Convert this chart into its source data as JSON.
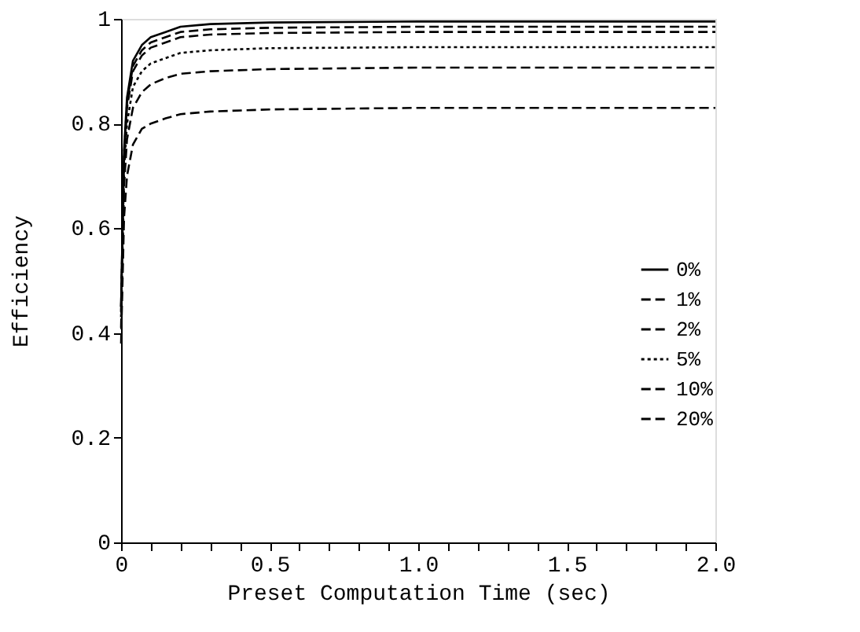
{
  "chart_data": {
    "type": "line",
    "xlabel": "Preset Computation Time (sec)",
    "ylabel": "Efficiency",
    "x": [
      0,
      0.01,
      0.02,
      0.04,
      0.07,
      0.1,
      0.15,
      0.2,
      0.3,
      0.5,
      1,
      1.5,
      2
    ],
    "series": [
      {
        "name": "0%",
        "color": "#000000",
        "line_style": "solid",
        "values": [
          0.45,
          0.75,
          0.85,
          0.92,
          0.95,
          0.965,
          0.975,
          0.985,
          0.99,
          0.993,
          0.995,
          0.995,
          0.995
        ]
      },
      {
        "name": "1%",
        "color": "#000000",
        "line_style": "dashed",
        "values": [
          0.45,
          0.74,
          0.84,
          0.91,
          0.94,
          0.955,
          0.965,
          0.975,
          0.98,
          0.983,
          0.985,
          0.985,
          0.985
        ]
      },
      {
        "name": "2%",
        "color": "#000000",
        "line_style": "dashed",
        "values": [
          0.44,
          0.73,
          0.83,
          0.9,
          0.93,
          0.945,
          0.955,
          0.965,
          0.97,
          0.973,
          0.975,
          0.975,
          0.975
        ]
      },
      {
        "name": "5%",
        "color": "#000000",
        "line_style": "dotted",
        "values": [
          0.43,
          0.71,
          0.8,
          0.87,
          0.9,
          0.915,
          0.925,
          0.935,
          0.94,
          0.944,
          0.946,
          0.946,
          0.946
        ]
      },
      {
        "name": "10%",
        "color": "#000000",
        "line_style": "dashed",
        "values": [
          0.41,
          0.68,
          0.77,
          0.83,
          0.86,
          0.875,
          0.887,
          0.895,
          0.9,
          0.904,
          0.907,
          0.907,
          0.907
        ]
      },
      {
        "name": "20%",
        "color": "#000000",
        "line_style": "dashed",
        "values": [
          0.38,
          0.62,
          0.7,
          0.76,
          0.79,
          0.8,
          0.81,
          0.818,
          0.823,
          0.827,
          0.83,
          0.83,
          0.83
        ]
      }
    ],
    "xlim": [
      0,
      2
    ],
    "xticks": [
      {
        "value": 0,
        "label": "0"
      },
      {
        "value": 0.1,
        "label": null
      },
      {
        "value": 0.2,
        "label": null
      },
      {
        "value": 0.3,
        "label": null
      },
      {
        "value": 0.4,
        "label": null
      },
      {
        "value": 0.5,
        "label": "0.5"
      },
      {
        "value": 0.6,
        "label": null
      },
      {
        "value": 0.7,
        "label": null
      },
      {
        "value": 0.8,
        "label": null
      },
      {
        "value": 0.9,
        "label": null
      },
      {
        "value": 1,
        "label": "1.0"
      },
      {
        "value": 1.1,
        "label": null
      },
      {
        "value": 1.2,
        "label": null
      },
      {
        "value": 1.3,
        "label": null
      },
      {
        "value": 1.4,
        "label": null
      },
      {
        "value": 1.5,
        "label": "1.5"
      },
      {
        "value": 1.6,
        "label": null
      },
      {
        "value": 1.7,
        "label": null
      },
      {
        "value": 1.8,
        "label": null
      },
      {
        "value": 1.9,
        "label": null
      },
      {
        "value": 2,
        "label": "2.0"
      }
    ],
    "ylim": [
      0,
      1
    ],
    "yticks": [
      0,
      0.2,
      0.4,
      0.6,
      0.8,
      1
    ],
    "grid": false,
    "legend": "right",
    "marker": "none"
  }
}
